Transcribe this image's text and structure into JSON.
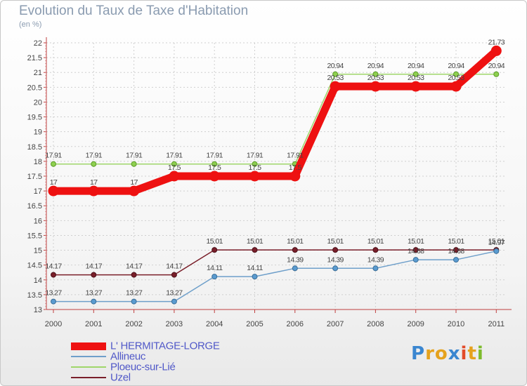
{
  "chart_data": {
    "type": "line",
    "title": "Evolution du Taux de Taxe d'Habitation",
    "ylabel": "(en %)",
    "xlabel": "",
    "x": [
      "2000",
      "2001",
      "2002",
      "2003",
      "2004",
      "2005",
      "2006",
      "2007",
      "2008",
      "2009",
      "2010",
      "2011"
    ],
    "ylim": [
      13,
      22
    ],
    "yticks": [
      "13",
      "13.5",
      "14",
      "14.5",
      "15",
      "15.5",
      "16",
      "16.5",
      "17",
      "17.5",
      "18",
      "18.5",
      "19",
      "19.5",
      "20",
      "20.5",
      "21",
      "21.5",
      "22"
    ],
    "grid": true,
    "legend_position": "bottom-left",
    "series": [
      {
        "name": "L' HERMITAGE-LORGE",
        "color": "#ee1111",
        "values": [
          17,
          17,
          17,
          17.5,
          17.5,
          17.5,
          17.5,
          20.53,
          20.53,
          20.53,
          20.53,
          21.73
        ]
      },
      {
        "name": "Allineuc",
        "color": "#6e9fca",
        "values": [
          13.27,
          13.27,
          13.27,
          13.27,
          14.11,
          14.11,
          14.39,
          14.39,
          14.39,
          14.68,
          14.68,
          14.97
        ]
      },
      {
        "name": "Ploeuc-sur-Lié",
        "color": "#9fd66a",
        "values": [
          17.91,
          17.91,
          17.91,
          17.91,
          17.91,
          17.91,
          17.91,
          20.94,
          20.94,
          20.94,
          20.94,
          20.94
        ]
      },
      {
        "name": "Uzel",
        "color": "#7a1f2a",
        "values": [
          14.17,
          14.17,
          14.17,
          14.17,
          15.01,
          15.01,
          15.01,
          15.01,
          15.01,
          15.01,
          15.01,
          15.01
        ]
      }
    ]
  },
  "logo": {
    "letters": [
      "P",
      "r",
      "o",
      "x",
      "i",
      "t",
      "i"
    ],
    "colors": [
      "#3a86d0",
      "#e5a21d",
      "#e5a21d",
      "#3a86d0",
      "#e24b2a",
      "#e5a21d",
      "#7dbb2c"
    ]
  }
}
